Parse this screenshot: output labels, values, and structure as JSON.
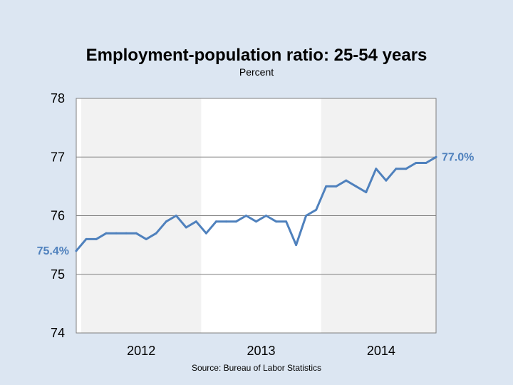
{
  "chart_data": {
    "type": "line",
    "title": "Employment-population ratio: 25-54 years",
    "subtitle": "Percent",
    "source": "Source: Bureau of Labor Statistics",
    "xlabel": "",
    "ylabel": "",
    "ylim": [
      74,
      78
    ],
    "yticks": [
      "74",
      "75",
      "76",
      "77",
      "78"
    ],
    "year_labels": [
      "2012",
      "2013",
      "2014"
    ],
    "shaded_years": [
      "2012",
      "2014"
    ],
    "grid": true,
    "series": [
      {
        "color": "#4f81bd",
        "x": [
          "Dec 2011",
          "Jan 2012",
          "Feb 2012",
          "Mar 2012",
          "Apr 2012",
          "May 2012",
          "Jun 2012",
          "Jul 2012",
          "Aug 2012",
          "Sep 2012",
          "Oct 2012",
          "Nov 2012",
          "Dec 2012",
          "Jan 2013",
          "Feb 2013",
          "Mar 2013",
          "Apr 2013",
          "May 2013",
          "Jun 2013",
          "Jul 2013",
          "Aug 2013",
          "Sep 2013",
          "Oct 2013",
          "Nov 2013",
          "Dec 2013",
          "Jan 2014",
          "Feb 2014",
          "Mar 2014",
          "Apr 2014",
          "May 2014",
          "Jun 2014",
          "Jul 2014",
          "Aug 2014",
          "Sep 2014",
          "Oct 2014",
          "Nov 2014",
          "Dec 2014"
        ],
        "values": [
          75.4,
          75.6,
          75.6,
          75.7,
          75.7,
          75.7,
          75.7,
          75.6,
          75.7,
          75.9,
          76.0,
          75.8,
          75.9,
          75.7,
          75.9,
          75.9,
          75.9,
          76.0,
          75.9,
          76.0,
          75.9,
          75.9,
          75.5,
          76.0,
          76.1,
          76.5,
          76.5,
          76.6,
          76.5,
          76.4,
          76.8,
          76.6,
          76.8,
          76.8,
          76.9,
          76.9,
          77.0
        ]
      }
    ],
    "annotations": {
      "start_label": "75.4%",
      "end_label": "77.0%"
    }
  }
}
